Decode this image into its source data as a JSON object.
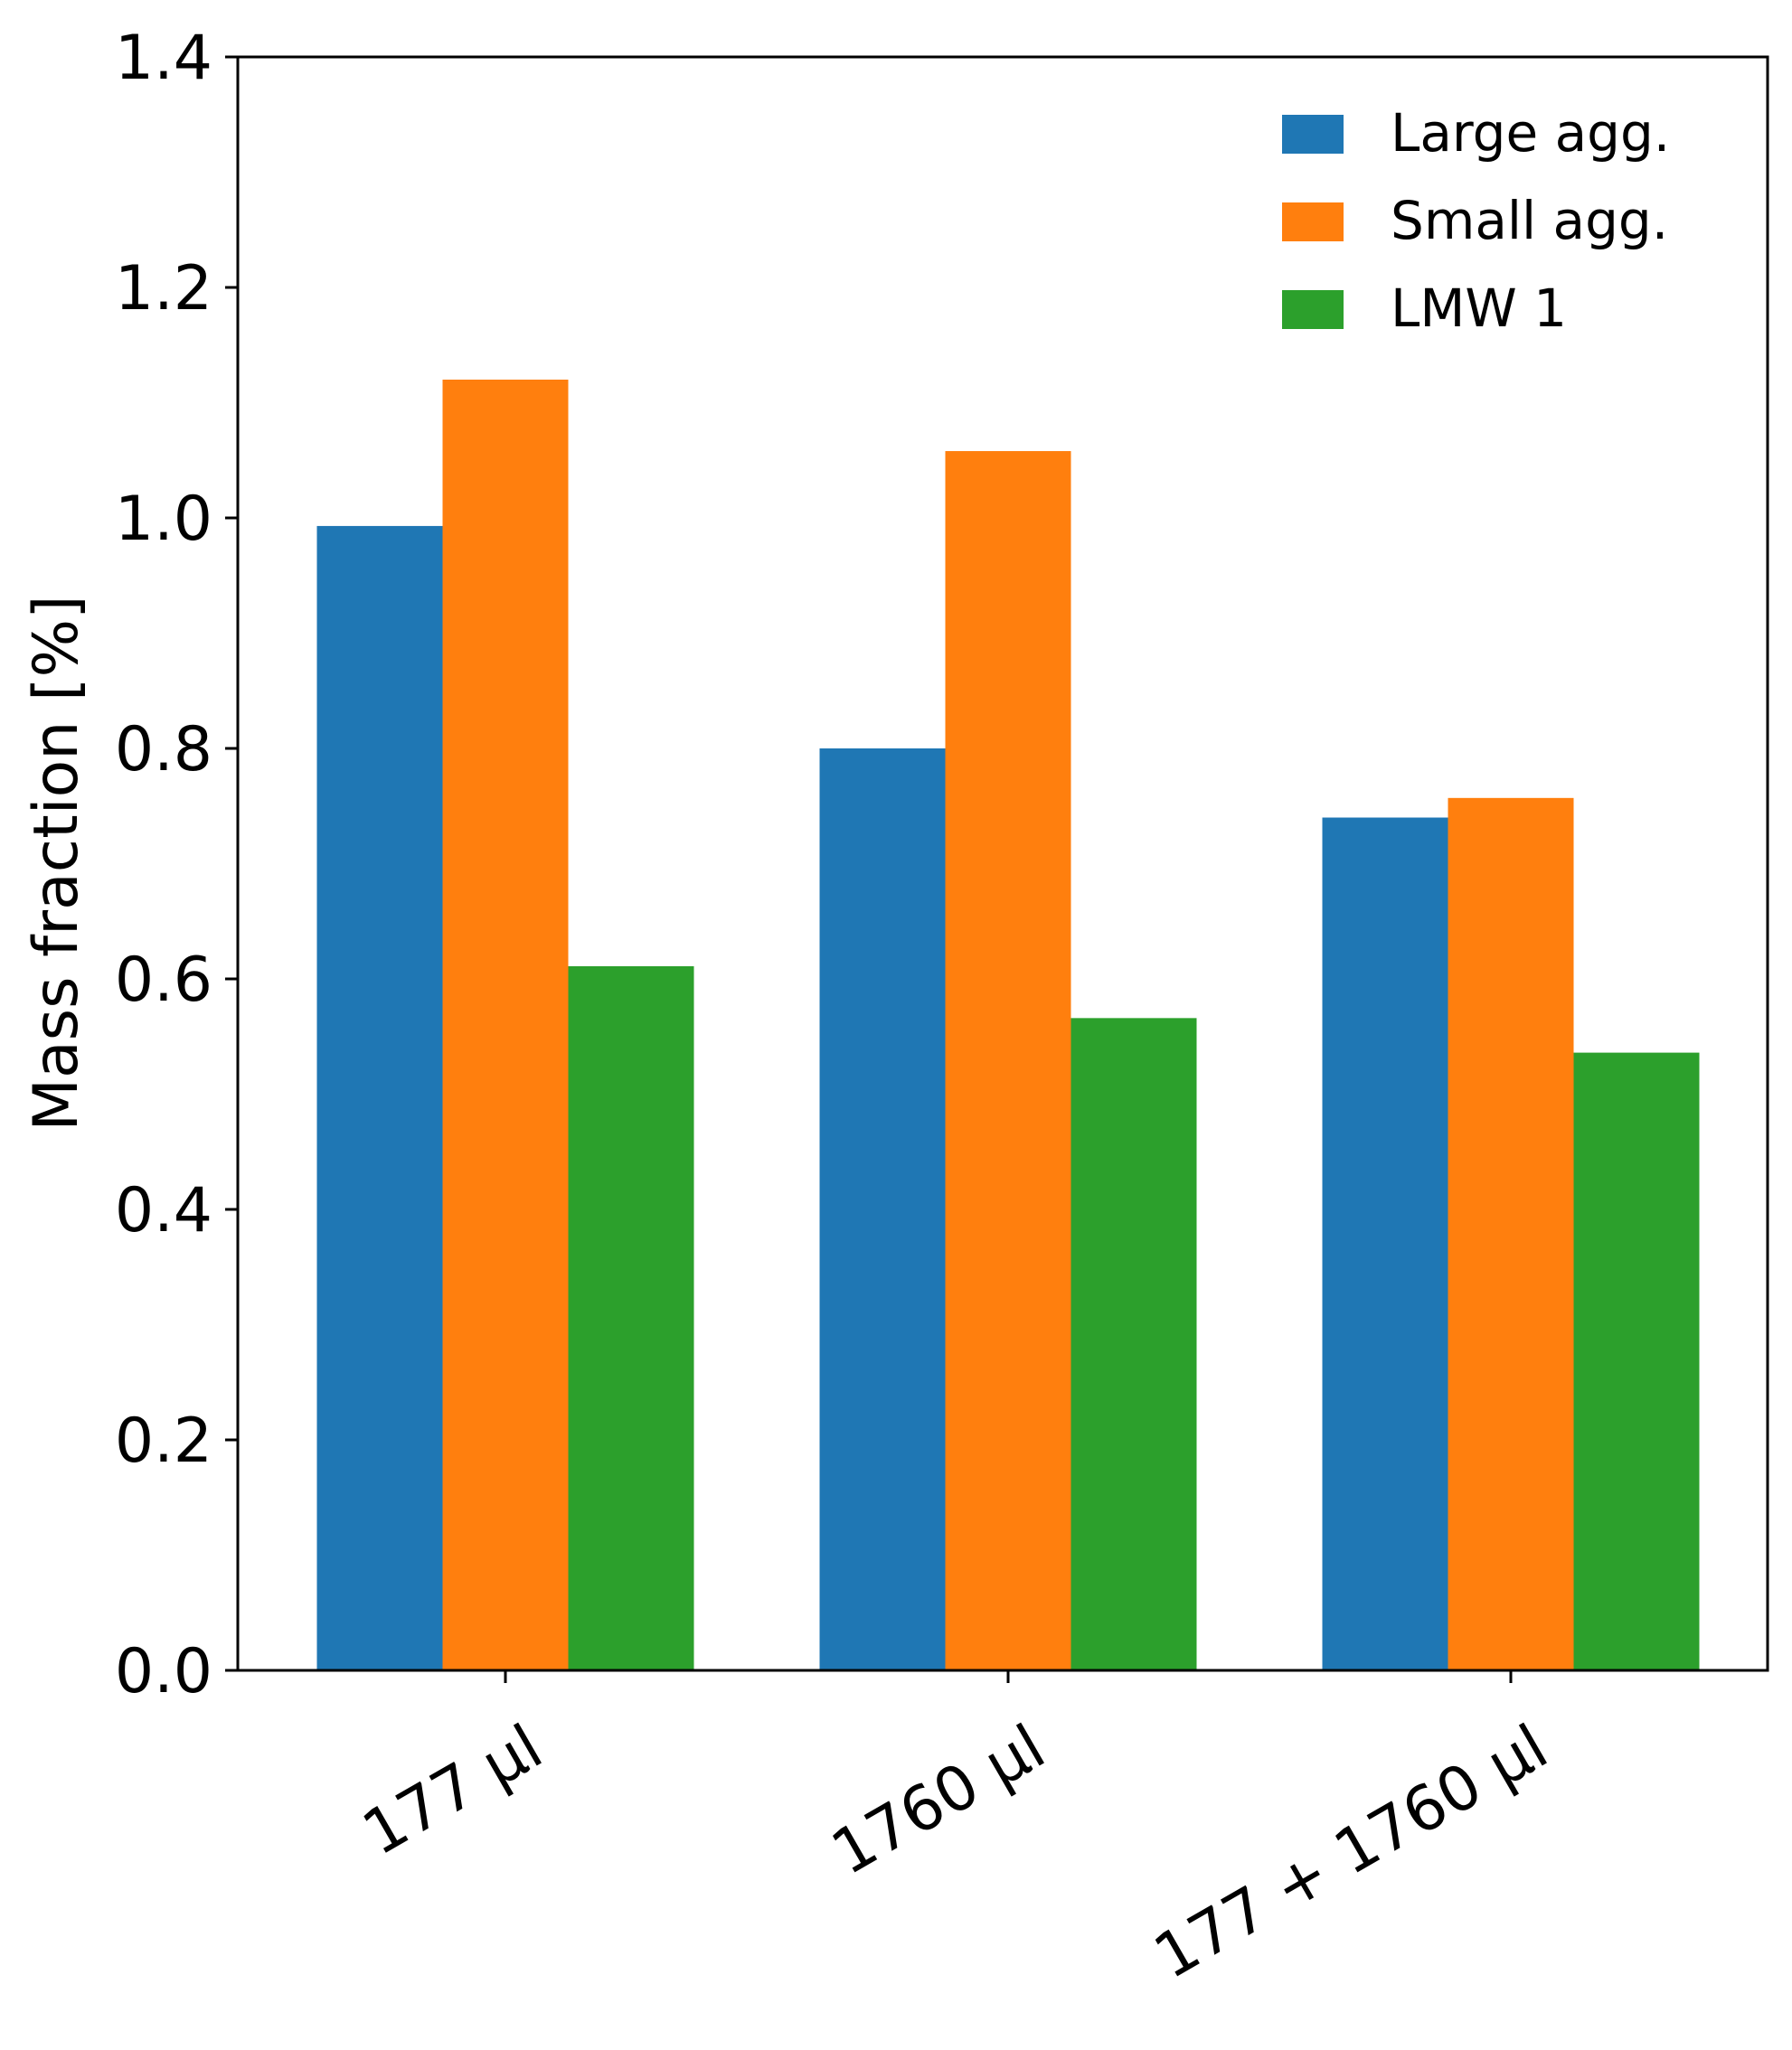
{
  "chart_data": {
    "type": "bar",
    "categories": [
      "177 μl",
      "1760 μl",
      "177 + 1760 μl"
    ],
    "series": [
      {
        "name": "Large agg.",
        "color": "#1f77b4",
        "values": [
          0.993,
          0.8,
          0.74
        ]
      },
      {
        "name": "Small agg.",
        "color": "#ff7f0e",
        "values": [
          1.12,
          1.058,
          0.757
        ]
      },
      {
        "name": "LMW 1",
        "color": "#2ca02c",
        "values": [
          0.611,
          0.566,
          0.536
        ]
      }
    ],
    "title": "",
    "xlabel": "",
    "ylabel": "Mass fraction [%]",
    "ylim": [
      0,
      1.4
    ],
    "yticks": [
      "0.0",
      "0.2",
      "0.4",
      "0.6",
      "0.8",
      "1.0",
      "1.2",
      "1.4"
    ],
    "grid": false,
    "legend_position": "top-right"
  }
}
